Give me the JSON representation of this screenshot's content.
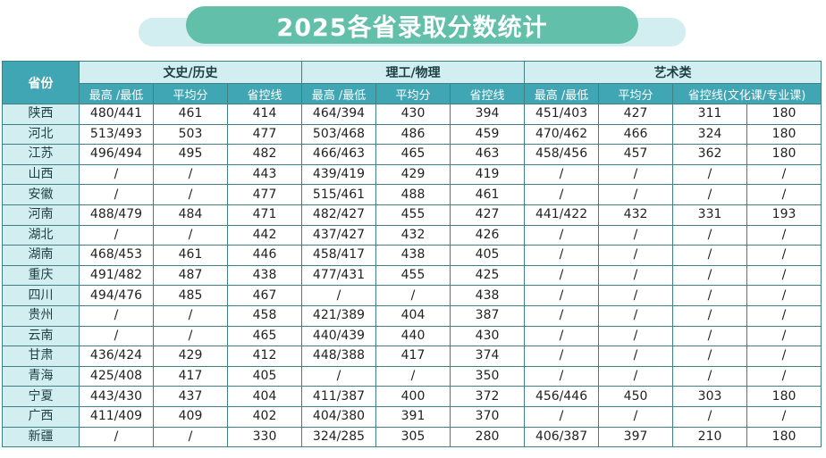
{
  "title": "2025各省录取分数统计",
  "colors": {
    "banner": "#62bfaa",
    "banner_back": "#d3eef0",
    "header_teal": "#41a6b3",
    "light_teal": "#d3eef0",
    "border": "#3f7f86"
  },
  "header": {
    "province": "省份",
    "groups": [
      "文史/历史",
      "理工/物理",
      "艺术类"
    ],
    "sub": [
      "最高 /最低",
      "平均分",
      "省控线",
      "最高 /最低",
      "平均分",
      "省控线",
      "最高 /最低",
      "平均分",
      "省控线(文化课/专业课)"
    ]
  },
  "rows": [
    [
      "陕西",
      "480/441",
      "461",
      "414",
      "464/394",
      "430",
      "394",
      "451/403",
      "427",
      "311",
      "180"
    ],
    [
      "河北",
      "513/493",
      "503",
      "477",
      "503/468",
      "486",
      "459",
      "470/462",
      "466",
      "324",
      "180"
    ],
    [
      "江苏",
      "496/494",
      "495",
      "482",
      "466/463",
      "465",
      "463",
      "458/456",
      "457",
      "362",
      "180"
    ],
    [
      "山西",
      "/",
      "/",
      "443",
      "439/419",
      "429",
      "419",
      "/",
      "/",
      "/",
      "/"
    ],
    [
      "安徽",
      "/",
      "/",
      "477",
      "515/461",
      "488",
      "461",
      "/",
      "/",
      "/",
      "/"
    ],
    [
      "河南",
      "488/479",
      "484",
      "471",
      "482/427",
      "455",
      "427",
      "441/422",
      "432",
      "331",
      "193"
    ],
    [
      "湖北",
      "/",
      "/",
      "442",
      "437/427",
      "432",
      "426",
      "/",
      "/",
      "/",
      "/"
    ],
    [
      "湖南",
      "468/453",
      "461",
      "446",
      "458/417",
      "438",
      "405",
      "/",
      "/",
      "/",
      "/"
    ],
    [
      "重庆",
      "491/482",
      "487",
      "438",
      "477/431",
      "455",
      "425",
      "/",
      "/",
      "/",
      "/"
    ],
    [
      "四川",
      "494/476",
      "485",
      "467",
      "/",
      "/",
      "438",
      "/",
      "/",
      "/",
      "/"
    ],
    [
      "贵州",
      "/",
      "/",
      "458",
      "421/389",
      "404",
      "387",
      "/",
      "/",
      "/",
      "/"
    ],
    [
      "云南",
      "/",
      "/",
      "465",
      "440/439",
      "440",
      "430",
      "/",
      "/",
      "/",
      "/"
    ],
    [
      "甘肃",
      "436/424",
      "429",
      "412",
      "448/388",
      "417",
      "374",
      "/",
      "/",
      "/",
      "/"
    ],
    [
      "青海",
      "425/408",
      "417",
      "405",
      "/",
      "/",
      "350",
      "/",
      "/",
      "/",
      "/"
    ],
    [
      "宁夏",
      "443/430",
      "437",
      "404",
      "411/387",
      "400",
      "372",
      "456/446",
      "450",
      "303",
      "180"
    ],
    [
      "广西",
      "411/409",
      "409",
      "402",
      "404/380",
      "391",
      "370",
      "/",
      "/",
      "/",
      "/"
    ],
    [
      "新疆",
      "/",
      "/",
      "330",
      "324/285",
      "305",
      "280",
      "406/387",
      "397",
      "210",
      "180"
    ]
  ]
}
